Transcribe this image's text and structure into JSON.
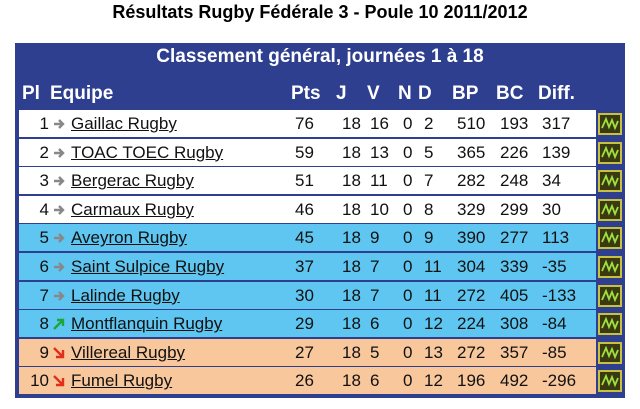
{
  "title": "Résultats Rugby Fédérale 3 - Poule 10 2011/2012",
  "table": {
    "banner": "Classement général, journées 1 à 18",
    "columns": [
      "Pl",
      "Equipe",
      "Pts",
      "J",
      "V",
      "N",
      "D",
      "BP",
      "BC",
      "Diff."
    ],
    "rows": [
      [
        1,
        "Gaillac Rugby",
        76,
        18,
        16,
        0,
        2,
        510,
        193,
        317
      ],
      [
        2,
        "TOAC TOEC Rugby",
        59,
        18,
        13,
        0,
        5,
        365,
        226,
        139
      ],
      [
        3,
        "Bergerac Rugby",
        51,
        18,
        11,
        0,
        7,
        282,
        248,
        34
      ],
      [
        4,
        "Carmaux Rugby",
        46,
        18,
        10,
        0,
        8,
        329,
        299,
        30
      ],
      [
        5,
        "Aveyron Rugby",
        45,
        18,
        9,
        0,
        9,
        390,
        277,
        113
      ],
      [
        6,
        "Saint Sulpice Rugby",
        37,
        18,
        7,
        0,
        11,
        304,
        339,
        -35
      ],
      [
        7,
        "Lalinde Rugby",
        30,
        18,
        7,
        0,
        11,
        272,
        405,
        -133
      ],
      [
        8,
        "Montflanquin Rugby",
        29,
        18,
        6,
        0,
        12,
        224,
        308,
        -84
      ],
      [
        9,
        "Villereal Rugby",
        27,
        18,
        5,
        0,
        13,
        272,
        357,
        -85
      ],
      [
        10,
        "Fumel Rugby",
        26,
        18,
        6,
        0,
        12,
        196,
        492,
        -296
      ]
    ],
    "trend": [
      "same",
      "same",
      "same",
      "same",
      "same",
      "same",
      "same",
      "up",
      "down",
      "down"
    ],
    "zones": [
      "white",
      "white",
      "white",
      "white",
      "blue",
      "blue",
      "blue",
      "blue",
      "orange",
      "orange"
    ]
  }
}
